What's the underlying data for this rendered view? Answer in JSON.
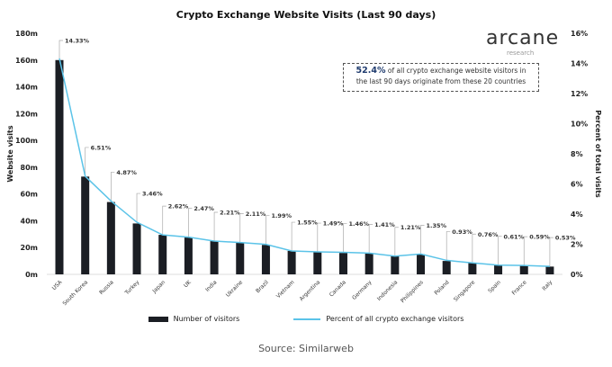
{
  "chart_data": {
    "type": "bar",
    "title": "Crypto Exchange Website Visits (Last 90 days)",
    "ylabel": "Website visits",
    "y2label": "Percent of total visits",
    "ylim": [
      0,
      180
    ],
    "y2lim": [
      0,
      16
    ],
    "yticks": [
      "0m",
      "20m",
      "40m",
      "60m",
      "80m",
      "100m",
      "120m",
      "140m",
      "160m",
      "180m"
    ],
    "y2ticks": [
      "0%",
      "2%",
      "4%",
      "6%",
      "8%",
      "10%",
      "12%",
      "14%",
      "16%"
    ],
    "categories": [
      "USA",
      "South Korea",
      "Russia",
      "Turkey",
      "Japan",
      "UK",
      "India",
      "Ukraine",
      "Brazil",
      "Vietnam",
      "Argentina",
      "Canada",
      "Germany",
      "Indonesia",
      "Philippines",
      "Poland",
      "Singapore",
      "Spain",
      "France",
      "Italy"
    ],
    "series": [
      {
        "name": "Number of visitors",
        "type": "bar",
        "color": "#1b1e24",
        "values": [
          160,
          73,
          54,
          38,
          29.5,
          27.5,
          25,
          23.5,
          22,
          17.5,
          16.5,
          16,
          15.5,
          13.5,
          15,
          10,
          8.5,
          6.7,
          6.5,
          5.8
        ]
      },
      {
        "name": "Percent of all crypto exchange visitors",
        "type": "line",
        "axis": "right",
        "color": "#5bc3e8",
        "values": [
          14.33,
          6.51,
          4.87,
          3.46,
          2.62,
          2.47,
          2.21,
          2.11,
          1.99,
          1.55,
          1.49,
          1.46,
          1.41,
          1.21,
          1.35,
          0.93,
          0.76,
          0.61,
          0.59,
          0.53
        ]
      }
    ],
    "data_labels": [
      "14.33%",
      "6.51%",
      "4.87%",
      "3.46%",
      "2.62%",
      "2.47%",
      "2.21%",
      "2.11%",
      "1.99%",
      "1.55%",
      "1.49%",
      "1.46%",
      "1.41%",
      "1.21%",
      "1.35%",
      "0.93%",
      "0.76%",
      "0.61%",
      "0.59%",
      "0.53%"
    ],
    "legend_position": "bottom"
  },
  "logo": {
    "name": "arcane",
    "sub": "research"
  },
  "note": {
    "highlight": "52.4%",
    "text1": " of all crypto exchange website visitors in",
    "text2": "the last 90 days originate from these 20 countries"
  },
  "source": "Source: Similarweb"
}
